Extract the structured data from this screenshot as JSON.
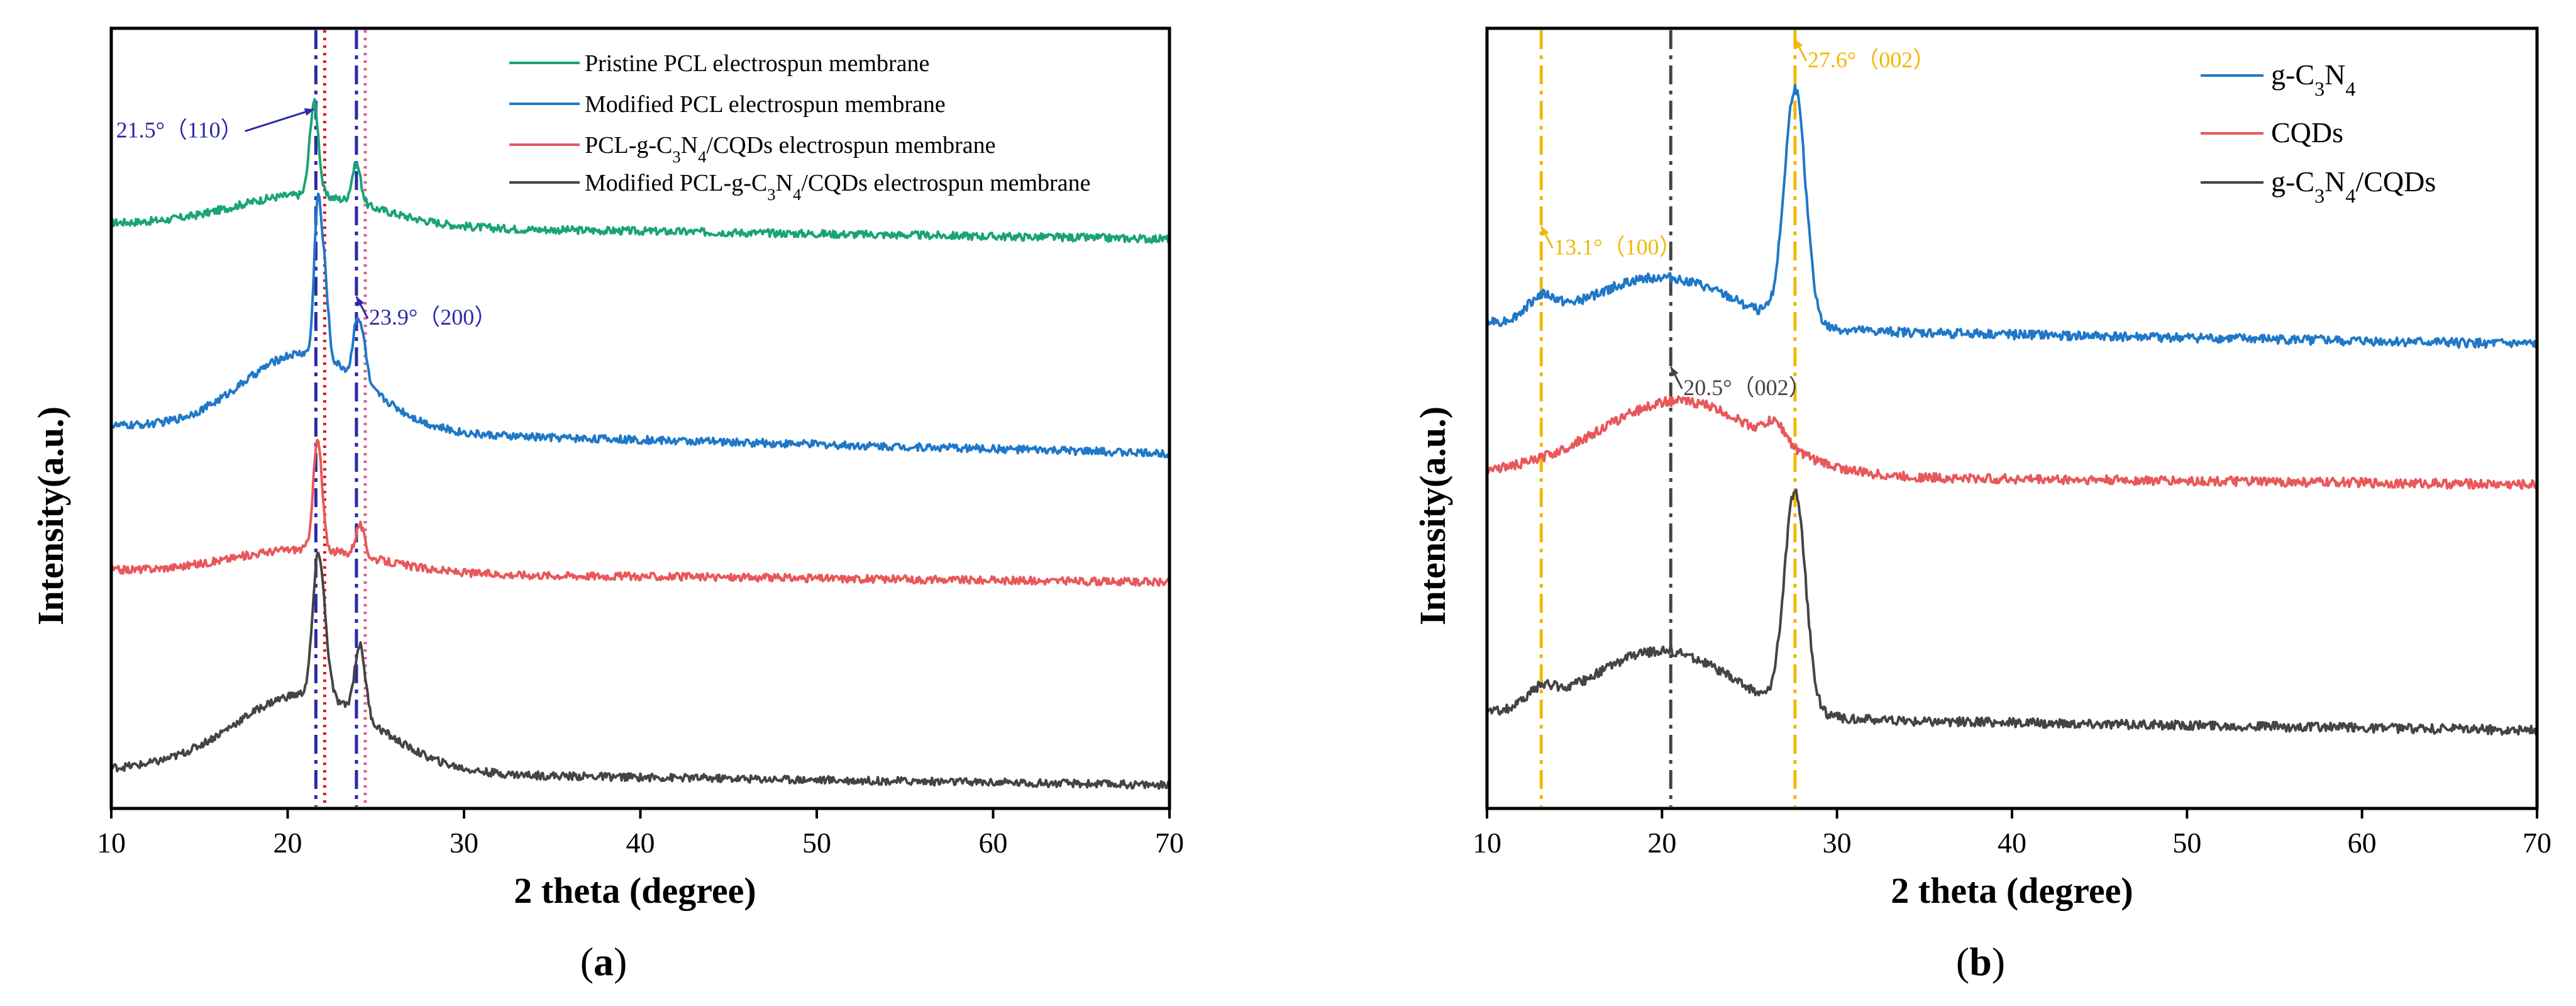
{
  "colors": {
    "green": "#1aa37a",
    "blue": "#1f78c8",
    "red": "#e8585a",
    "gray": "#444444",
    "navy": "#2a2aa8",
    "gold": "#f2b705",
    "refRed": "#e01e1e",
    "refPink": "#e06090"
  },
  "chart_data": [
    {
      "type": "line",
      "panel": "a",
      "panel_label": "a",
      "xlabel": "2 theta (degree)",
      "ylabel": "Intensity(a.u.)",
      "xlim": [
        10,
        70
      ],
      "ylim": [
        0,
        10
      ],
      "xticks": [
        "10",
        "20",
        "30",
        "40",
        "50",
        "60",
        "70"
      ],
      "legend": [
        "Pristine PCL electrospun membrane",
        "Modified PCL electrospun membrane",
        "PCL-g-C3N4/CQDs electrospun membrane",
        "Modified PCL-g-C3N4/CQDs electrospun membrane"
      ],
      "series": [
        {
          "name": "Pristine PCL electrospun membrane",
          "color": "green",
          "baseline": 7.5,
          "tail": 7.3,
          "broad": [
            [
              21,
              0.4,
              4
            ]
          ],
          "peaks": [
            [
              21.5,
              1.2,
              0.25
            ],
            [
              23.9,
              0.5,
              0.25
            ]
          ],
          "noise": 0.05
        },
        {
          "name": "Modified PCL electrospun membrane",
          "color": "blue",
          "baseline": 4.9,
          "tail": 4.55,
          "broad": [
            [
              21,
              1.0,
              3.5
            ]
          ],
          "peaks": [
            [
              21.7,
              1.9,
              0.2
            ],
            [
              22.1,
              1.0,
              0.2
            ],
            [
              23.9,
              0.7,
              0.2
            ],
            [
              24.3,
              0.5,
              0.2
            ]
          ],
          "noise": 0.05
        },
        {
          "name": "PCL-g-C3N4/CQDs electrospun membrane",
          "color": "red",
          "baseline": 3.05,
          "tail": 2.9,
          "broad": [
            [
              21,
              0.3,
              4
            ]
          ],
          "peaks": [
            [
              21.7,
              1.4,
              0.25
            ],
            [
              24.1,
              0.4,
              0.25
            ]
          ],
          "noise": 0.05
        },
        {
          "name": "Modified PCL-g-C3N4/CQDs electrospun membrane",
          "color": "gray",
          "baseline": 0.5,
          "tail": 0.3,
          "broad": [
            [
              21,
              1.0,
              4
            ]
          ],
          "peaks": [
            [
              21.7,
              1.6,
              0.3
            ],
            [
              22.1,
              0.5,
              0.3
            ],
            [
              24.1,
              0.9,
              0.3
            ]
          ],
          "noise": 0.05
        }
      ],
      "ref_lines": [
        {
          "x": 21.6,
          "color": "navy",
          "style": "dashdot"
        },
        {
          "x": 22.1,
          "color": "refRed",
          "style": "dotted"
        },
        {
          "x": 23.9,
          "color": "navy",
          "style": "dashdot"
        },
        {
          "x": 24.4,
          "color": "refPink",
          "style": "dotted"
        }
      ],
      "annotations": [
        {
          "text": "21.5°（110）",
          "x": 21.5,
          "y": 8.6,
          "color": "navy"
        },
        {
          "text": "23.9°（200）",
          "x": 23.9,
          "y": 6.2,
          "color": "navy"
        }
      ]
    },
    {
      "type": "line",
      "panel": "b",
      "panel_label": "b",
      "xlabel": "2 theta (degree)",
      "ylabel": "Intensity(a.u.)",
      "xlim": [
        10,
        70
      ],
      "ylim": [
        0,
        10
      ],
      "xticks": [
        "10",
        "20",
        "30",
        "40",
        "50",
        "60",
        "70"
      ],
      "legend": [
        "g-C3N4",
        "CQDs",
        "g-C3N4/CQDs"
      ],
      "series": [
        {
          "name": "g-C3N4",
          "color": "blue",
          "baseline": 6.2,
          "tail": 5.95,
          "broad": [
            [
              13.1,
              0.25,
              0.8
            ],
            [
              20,
              0.65,
              4
            ]
          ],
          "peaks": [
            [
              27.6,
              3.0,
              0.6
            ]
          ],
          "noise": 0.06
        },
        {
          "name": "CQDs",
          "color": "red",
          "baseline": 4.3,
          "tail": 4.15,
          "broad": [
            [
              21,
              0.95,
              4.5
            ]
          ],
          "peaks": [
            [
              26.5,
              0.25,
              0.6
            ]
          ],
          "noise": 0.06
        },
        {
          "name": "g-C3N4/CQDs",
          "color": "gray",
          "baseline": 1.2,
          "tail": 1.0,
          "broad": [
            [
              13.1,
              0.2,
              0.8
            ],
            [
              20,
              0.85,
              4
            ]
          ],
          "peaks": [
            [
              27.6,
              2.8,
              0.6
            ]
          ],
          "noise": 0.06
        }
      ],
      "ref_lines": [
        {
          "x": 13.1,
          "color": "gold",
          "style": "dashdot"
        },
        {
          "x": 20.5,
          "color": "gray",
          "style": "dashdot"
        },
        {
          "x": 27.6,
          "color": "gold",
          "style": "dashdot"
        }
      ],
      "annotations": [
        {
          "text": "13.1°（100）",
          "x": 13.1,
          "y": 7.1,
          "color": "gold"
        },
        {
          "text": "20.5°（002）",
          "x": 20.5,
          "y": 5.3,
          "color": "gray"
        },
        {
          "text": "27.6°（002）",
          "x": 27.6,
          "y": 9.5,
          "color": "gold"
        }
      ]
    }
  ]
}
